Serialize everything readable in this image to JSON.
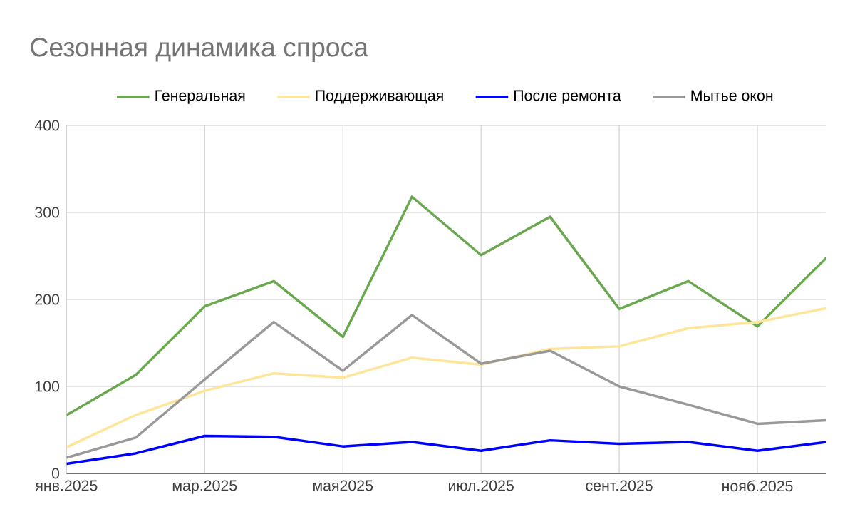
{
  "chart_data": {
    "type": "line",
    "title": "Сезонная динамика спроса",
    "categories": [
      "янв.2025",
      null,
      "мар.2025",
      null,
      "мая2025",
      null,
      "июл.2025",
      null,
      "сент.2025",
      null,
      "нояб.2025",
      null
    ],
    "series": [
      {
        "name": "Генеральная",
        "color": "#6aa84f",
        "values": [
          67,
          113,
          192,
          221,
          157,
          318,
          251,
          295,
          189,
          221,
          169,
          248
        ]
      },
      {
        "name": "Поддерживающая",
        "color": "#ffe599",
        "values": [
          30,
          67,
          95,
          115,
          110,
          133,
          125,
          143,
          146,
          167,
          174,
          190
        ]
      },
      {
        "name": "После ремонта",
        "color": "#0000ff",
        "values": [
          11,
          23,
          43,
          42,
          31,
          36,
          26,
          38,
          34,
          36,
          26,
          36
        ]
      },
      {
        "name": "Мытье окон",
        "color": "#999999",
        "values": [
          18,
          41,
          108,
          174,
          118,
          182,
          126,
          141,
          100,
          79,
          57,
          61
        ]
      }
    ],
    "ylim": [
      0,
      400
    ],
    "yticks": [
      0,
      100,
      200,
      300,
      400
    ],
    "grid": true,
    "legend": "top",
    "marker": "none",
    "line_style": "solid"
  }
}
